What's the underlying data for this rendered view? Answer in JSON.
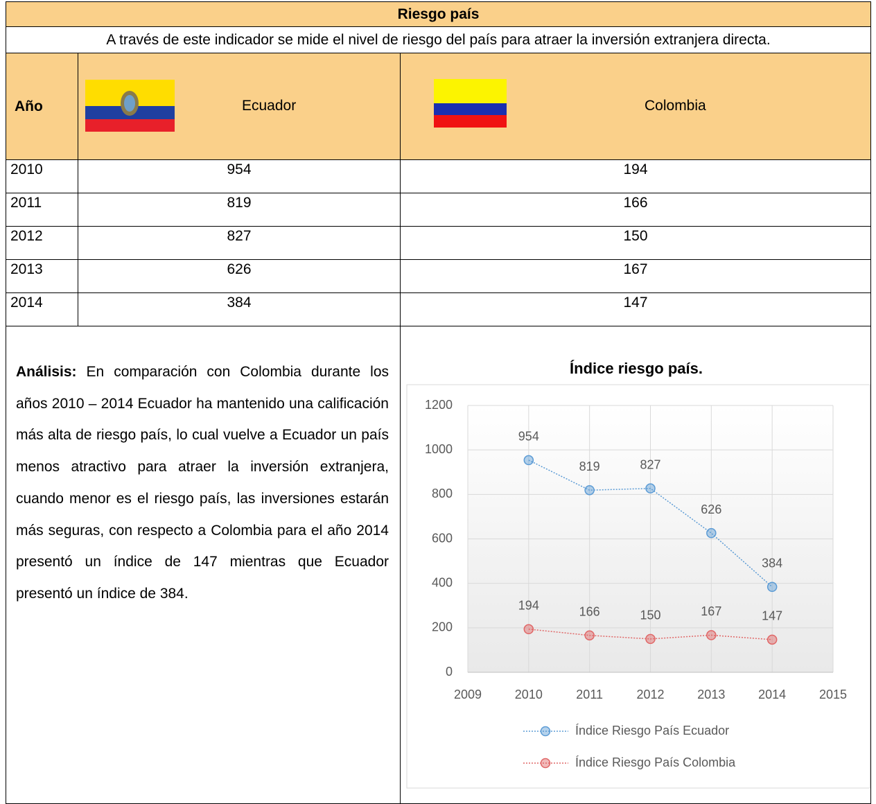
{
  "title": "Riesgo país",
  "description": "A través de este indicador se mide el nivel de riesgo del país para atraer la inversión extranjera directa.",
  "table": {
    "headers": [
      "Año",
      "Ecuador",
      "Colombia"
    ],
    "rows": [
      [
        2010,
        954,
        194
      ],
      [
        2011,
        819,
        166
      ],
      [
        2012,
        827,
        150
      ],
      [
        2013,
        626,
        167
      ],
      [
        2014,
        384,
        147
      ]
    ]
  },
  "analysis": {
    "label": "Análisis:",
    "text": "En comparación con Colombia durante los años 2010 – 2014 Ecuador ha mantenido una calificación más alta de riesgo país, lo cual vuelve a Ecuador un país menos atractivo para atraer la inversión extranjera, cuando menor es el riesgo país, las inversiones estarán más seguras, con respecto a Colombia para el año 2014 presentó un índice de 147 mientras que Ecuador presentó un índice de 384."
  },
  "chart_data": {
    "type": "line",
    "title": "Índice riesgo país.",
    "x": [
      2010,
      2011,
      2012,
      2013,
      2014
    ],
    "xlim": [
      2009,
      2015
    ],
    "xticks": [
      2009,
      2010,
      2011,
      2012,
      2013,
      2014,
      2015
    ],
    "ylim": [
      0,
      1200
    ],
    "yticks": [
      0,
      200,
      400,
      600,
      800,
      1000,
      1200
    ],
    "grid": true,
    "data_labels": true,
    "legend": "bottom",
    "series": [
      {
        "name": "Índice Riesgo País Ecuador",
        "color": "#5b9bd5",
        "values": [
          954,
          819,
          827,
          626,
          384
        ]
      },
      {
        "name": "Índice Riesgo País Colombia",
        "color": "#e06666",
        "values": [
          194,
          166,
          150,
          167,
          147
        ]
      }
    ]
  }
}
